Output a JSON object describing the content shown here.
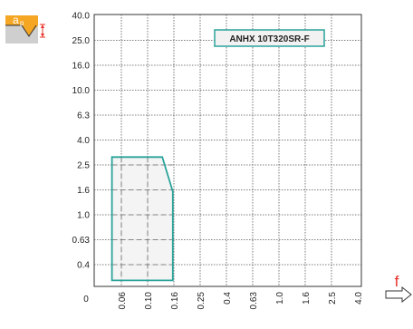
{
  "icon": {
    "name": "depth-of-cut-icon",
    "label": "a",
    "sub": "p"
  },
  "chart_data": {
    "type": "area",
    "title": "ANHX 10T320SR-F",
    "xlabel": "f",
    "ylabel": "",
    "scale": "categorical-log",
    "y_ticks": [
      "0.4",
      "0.63",
      "1.0",
      "1.6",
      "2.5",
      "4.0",
      "6.3",
      "10.0",
      "16.0",
      "25.0",
      "40.0"
    ],
    "y_tick_values": [
      0.4,
      0.63,
      1.0,
      1.6,
      2.5,
      4.0,
      6.3,
      10.0,
      16.0,
      25.0,
      40.0
    ],
    "x_ticks": [
      "0.06",
      "0.10",
      "0.16",
      "0.25",
      "0.4",
      "0.63",
      "1.0",
      "1.6",
      "2.5",
      "4.0"
    ],
    "x_tick_values": [
      0.06,
      0.1,
      0.16,
      0.25,
      0.4,
      0.63,
      1.0,
      1.6,
      2.5,
      4.0
    ],
    "origin_label": "0",
    "xlim": [
      0,
      4.0
    ],
    "ylim": [
      0,
      40.0
    ],
    "grid": true,
    "region": {
      "name": "application-range",
      "points": [
        [
          0.05,
          0.3
        ],
        [
          0.05,
          2.9
        ],
        [
          0.13,
          2.9
        ],
        [
          0.157,
          1.55
        ],
        [
          0.157,
          0.3
        ]
      ],
      "fill": "#f2f2f2",
      "stroke": "#2aa39a"
    },
    "colors": {
      "accent": "#2aa39a",
      "icon_fill": "#f5a623",
      "icon_marker": "#e8312a",
      "grid": "#555555"
    }
  }
}
